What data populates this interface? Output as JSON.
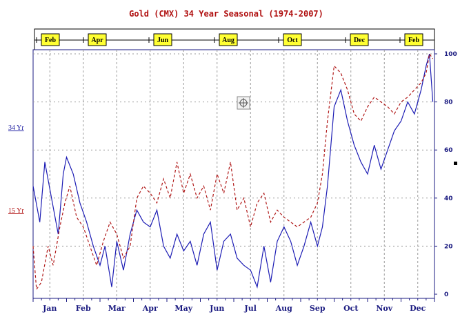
{
  "chart_data": {
    "type": "line",
    "title": "Gold (CMX) 34 Year Seasonal (1974-2007)",
    "categories": [
      "Jan",
      "Feb",
      "Mar",
      "Apr",
      "May",
      "Jun",
      "Jul",
      "Aug",
      "Sep",
      "Oct",
      "Nov",
      "Dec"
    ],
    "top_labels": [
      "Feb",
      "Apr",
      "Jun",
      "Aug",
      "Oct",
      "Dec",
      "Feb"
    ],
    "yticks": [
      0,
      20,
      40,
      60,
      80,
      100
    ],
    "ylim": [
      0,
      100
    ],
    "xlim": [
      0,
      12
    ],
    "grid": true,
    "legend_placement": "left",
    "colors": {
      "series34": "#1c1cb4",
      "series15": "#b01818",
      "grid": "#9a9a9a",
      "axis": "#1a1a80"
    },
    "series": [
      {
        "name": "34 Yr",
        "x": [
          0,
          0.2,
          0.35,
          0.55,
          0.75,
          0.9,
          1.0,
          1.2,
          1.4,
          1.6,
          1.8,
          2.0,
          2.15,
          2.35,
          2.5,
          2.7,
          2.9,
          3.1,
          3.3,
          3.5,
          3.7,
          3.9,
          4.1,
          4.3,
          4.5,
          4.7,
          4.9,
          5.1,
          5.3,
          5.5,
          5.7,
          5.9,
          6.1,
          6.3,
          6.5,
          6.7,
          6.9,
          7.1,
          7.3,
          7.5,
          7.7,
          7.9,
          8.1,
          8.3,
          8.5,
          8.65,
          8.8,
          9.0,
          9.2,
          9.4,
          9.6,
          9.8,
          10.0,
          10.2,
          10.4,
          10.6,
          10.8,
          11.0,
          11.2,
          11.4,
          11.6,
          11.75,
          11.85,
          11.95
        ],
        "values": [
          45,
          30,
          55,
          40,
          25,
          50,
          57,
          50,
          38,
          30,
          20,
          12,
          20,
          3,
          22,
          10,
          25,
          35,
          30,
          28,
          35,
          20,
          15,
          25,
          18,
          22,
          12,
          25,
          30,
          10,
          22,
          25,
          15,
          12,
          10,
          3,
          20,
          5,
          22,
          28,
          22,
          12,
          20,
          30,
          20,
          28,
          45,
          78,
          85,
          72,
          62,
          55,
          50,
          62,
          52,
          60,
          68,
          72,
          80,
          75,
          85,
          95,
          100,
          80
        ]
      },
      {
        "name": "15 Yr",
        "x": [
          0,
          0.1,
          0.25,
          0.45,
          0.6,
          0.8,
          0.95,
          1.1,
          1.3,
          1.5,
          1.7,
          1.9,
          2.1,
          2.3,
          2.5,
          2.7,
          2.9,
          3.1,
          3.3,
          3.5,
          3.7,
          3.9,
          4.1,
          4.3,
          4.5,
          4.7,
          4.9,
          5.1,
          5.3,
          5.5,
          5.7,
          5.9,
          6.1,
          6.3,
          6.5,
          6.7,
          6.9,
          7.1,
          7.3,
          7.5,
          7.7,
          7.9,
          8.1,
          8.3,
          8.5,
          8.65,
          8.8,
          9.0,
          9.2,
          9.4,
          9.6,
          9.8,
          10.0,
          10.2,
          10.4,
          10.6,
          10.8,
          11.0,
          11.2,
          11.4,
          11.6,
          11.75,
          11.85,
          11.95
        ],
        "values": [
          20,
          2,
          5,
          20,
          12,
          28,
          38,
          45,
          32,
          28,
          20,
          12,
          22,
          30,
          25,
          15,
          20,
          40,
          45,
          42,
          38,
          48,
          40,
          55,
          42,
          50,
          40,
          45,
          35,
          50,
          42,
          55,
          35,
          40,
          28,
          38,
          42,
          30,
          35,
          32,
          30,
          28,
          30,
          32,
          38,
          50,
          72,
          95,
          92,
          85,
          75,
          72,
          78,
          82,
          80,
          78,
          75,
          80,
          82,
          85,
          88,
          92,
          100,
          98
        ]
      }
    ]
  }
}
